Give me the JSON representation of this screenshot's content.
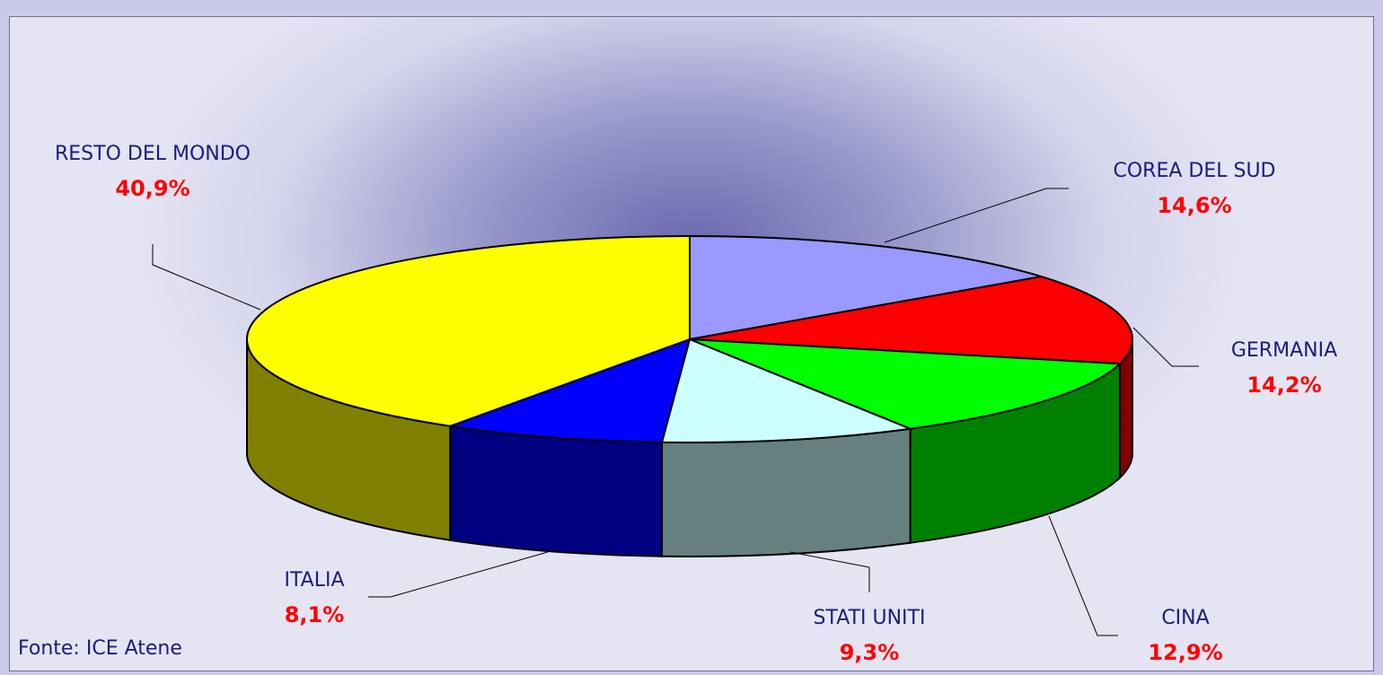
{
  "chart_data": {
    "type": "pie",
    "categories": [
      "COREA DEL SUD",
      "GERMANIA",
      "CINA",
      "STATI UNITI",
      "ITALIA",
      "RESTO DEL MONDO"
    ],
    "values": [
      14.6,
      14.2,
      12.9,
      9.3,
      8.1,
      40.9
    ],
    "value_labels": [
      "14,6%",
      "14,2%",
      "12,9%",
      "9,3%",
      "8,1%",
      "40,9%"
    ],
    "colors": [
      "#9999ff",
      "#ff0000",
      "#00ff00",
      "#ccffff",
      "#0000ff",
      "#ffff00"
    ],
    "side_colors": [
      "#4c4c80",
      "#800000",
      "#008000",
      "#668080",
      "#000080",
      "#808000"
    ],
    "source": "Fonte: ICE Atene"
  }
}
